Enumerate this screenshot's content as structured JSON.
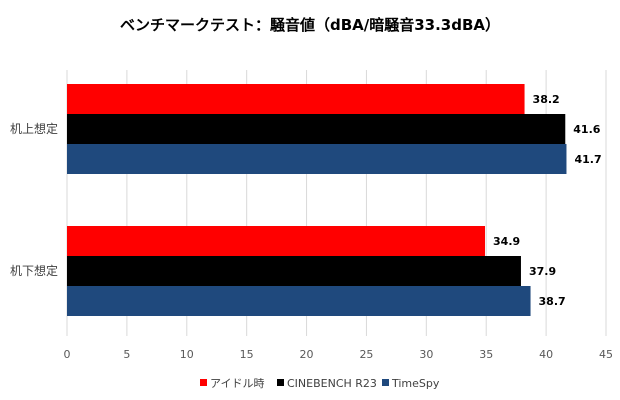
{
  "chart_data": {
    "type": "bar",
    "orientation": "horizontal",
    "title": "ベンチマークテスト：騒音値（dBA/暗騒音33.3dBA）",
    "categories": [
      "机上想定",
      "机下想定"
    ],
    "series": [
      {
        "name": "アイドル時",
        "color": "#ff0000",
        "values": [
          38.2,
          34.9
        ]
      },
      {
        "name": "CINEBENCH R23",
        "color": "#000000",
        "values": [
          41.6,
          37.9
        ]
      },
      {
        "name": "TimeSpy",
        "color": "#1f497d",
        "values": [
          41.7,
          38.7
        ]
      }
    ],
    "xlim": [
      0,
      45
    ],
    "xticks": [
      0,
      5,
      10,
      15,
      20,
      25,
      30,
      35,
      40,
      45
    ],
    "grid": true,
    "legend_position": "bottom"
  }
}
